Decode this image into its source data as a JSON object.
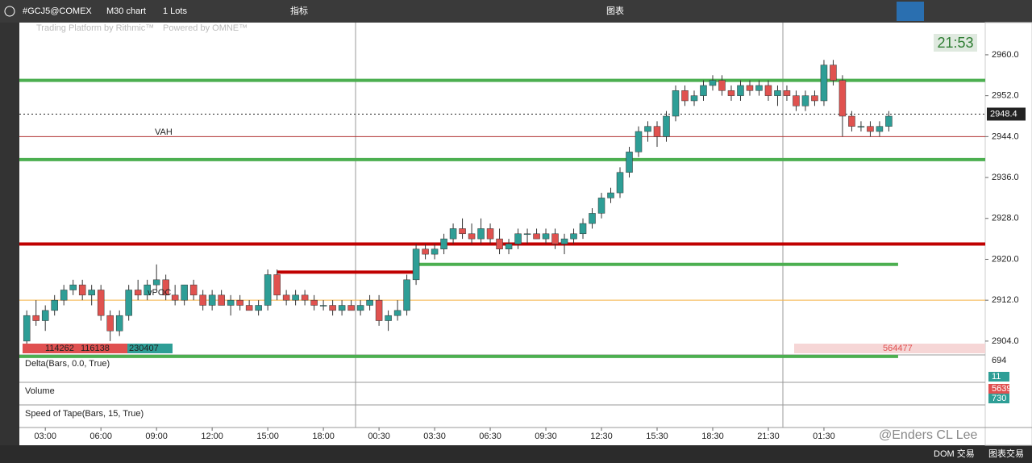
{
  "toolbar": {
    "symbol": "#GCJ5@COMEX",
    "chart_type": "M30 chart",
    "lots": "1 Lots",
    "indicators": "指标",
    "window_title": "图表"
  },
  "watermark": {
    "left": "Trading Platform by Rithmic™",
    "right": "Powered by OMNE™"
  },
  "footer": {
    "dom": "DOM 交易",
    "chart_trading": "图表交易",
    "credit": "@Enders CL Lee"
  },
  "chart_data": {
    "type": "candlestick",
    "clock": "21:53",
    "ylim": [
      2901.3,
      2966.3
    ],
    "yticks": [
      {
        "value": 2904,
        "label": "2904.0"
      },
      {
        "value": 2912,
        "label": "2912.0"
      },
      {
        "value": 2920,
        "label": "2920.0"
      },
      {
        "value": 2928,
        "label": "2928.0"
      },
      {
        "value": 2936,
        "label": "2936.0"
      },
      {
        "value": 2944,
        "label": "2944.0"
      },
      {
        "value": 2952,
        "label": "2952.0"
      },
      {
        "value": 2960,
        "label": "2960.0"
      }
    ],
    "xlim": [
      -0.8,
      103.4
    ],
    "xticks": [
      {
        "value": 2,
        "label": "03:00"
      },
      {
        "value": 8,
        "label": "06:00"
      },
      {
        "value": 14,
        "label": "09:00"
      },
      {
        "value": 20,
        "label": "12:00"
      },
      {
        "value": 26,
        "label": "15:00"
      },
      {
        "value": 32,
        "label": "18:00"
      },
      {
        "value": 38,
        "label": "00:30"
      },
      {
        "value": 44,
        "label": "03:30"
      },
      {
        "value": 50,
        "label": "06:30"
      },
      {
        "value": 56,
        "label": "09:30"
      },
      {
        "value": 62,
        "label": "12:30"
      },
      {
        "value": 68,
        "label": "15:30"
      },
      {
        "value": 74,
        "label": "18:30"
      },
      {
        "value": 80,
        "label": "21:30"
      },
      {
        "value": 86,
        "label": "01:30"
      }
    ],
    "up_color": "#2e9e96",
    "down_color": "#e0524f",
    "last_price": {
      "value": 2948.4,
      "label": "2948.4"
    },
    "ohlc": [
      [
        2904,
        2910,
        2903,
        2909
      ],
      [
        2909,
        2912,
        2907,
        2908
      ],
      [
        2908,
        2911,
        2906,
        2910
      ],
      [
        2910,
        2913,
        2909,
        2912
      ],
      [
        2912,
        2915,
        2911,
        2914
      ],
      [
        2914,
        2916,
        2913,
        2915
      ],
      [
        2915,
        2916,
        2912,
        2913
      ],
      [
        2913,
        2915,
        2911,
        2914
      ],
      [
        2914,
        2915,
        2908,
        2909
      ],
      [
        2909,
        2910,
        2904,
        2906
      ],
      [
        2906,
        2910,
        2905,
        2909
      ],
      [
        2909,
        2915,
        2908,
        2914
      ],
      [
        2914,
        2916,
        2912,
        2913
      ],
      [
        2913,
        2916,
        2912,
        2915
      ],
      [
        2915,
        2919,
        2914,
        2916
      ],
      [
        2916,
        2917,
        2912,
        2913
      ],
      [
        2913,
        2915,
        2911,
        2912
      ],
      [
        2912,
        2915,
        2911,
        2915
      ],
      [
        2915,
        2916,
        2912,
        2913
      ],
      [
        2913,
        2914,
        2910,
        2911
      ],
      [
        2911,
        2914,
        2910,
        2913
      ],
      [
        2913,
        2914,
        2911,
        2911
      ],
      [
        2911,
        2913,
        2909,
        2912
      ],
      [
        2912,
        2913,
        2910,
        2911
      ],
      [
        2911,
        2912,
        2910,
        2910
      ],
      [
        2910,
        2912,
        2909,
        2911
      ],
      [
        2911,
        2918,
        2910,
        2917
      ],
      [
        2917,
        2918,
        2912,
        2913
      ],
      [
        2913,
        2914,
        2911,
        2912
      ],
      [
        2912,
        2914,
        2911,
        2913
      ],
      [
        2913,
        2914,
        2911,
        2912
      ],
      [
        2912,
        2913,
        2910,
        2911
      ],
      [
        2911,
        2912,
        2910,
        2911
      ],
      [
        2911,
        2912,
        2909,
        2910
      ],
      [
        2910,
        2912,
        2909,
        2911
      ],
      [
        2911,
        2912,
        2910,
        2910
      ],
      [
        2910,
        2912,
        2909,
        2911
      ],
      [
        2911,
        2913,
        2910,
        2912
      ],
      [
        2912,
        2913,
        2907,
        2908
      ],
      [
        2908,
        2910,
        2906,
        2909
      ],
      [
        2909,
        2912,
        2908,
        2910
      ],
      [
        2910,
        2917,
        2909,
        2916
      ],
      [
        2916,
        2923,
        2915,
        2922
      ],
      [
        2922,
        2923,
        2920,
        2921
      ],
      [
        2921,
        2923,
        2920,
        2922
      ],
      [
        2922,
        2925,
        2921,
        2924
      ],
      [
        2924,
        2927,
        2923,
        2926
      ],
      [
        2926,
        2928,
        2924,
        2925
      ],
      [
        2925,
        2927,
        2923,
        2924
      ],
      [
        2924,
        2928,
        2923,
        2926
      ],
      [
        2926,
        2927,
        2923,
        2924
      ],
      [
        2924,
        2926,
        2921,
        2922
      ],
      [
        2922,
        2924,
        2921,
        2923
      ],
      [
        2923,
        2926,
        2922,
        2925
      ],
      [
        2925,
        2926,
        2923,
        2925
      ],
      [
        2925,
        2926,
        2924,
        2924
      ],
      [
        2924,
        2926,
        2923,
        2925
      ],
      [
        2925,
        2926,
        2922,
        2923
      ],
      [
        2923,
        2925,
        2921,
        2924
      ],
      [
        2924,
        2926,
        2923,
        2925
      ],
      [
        2925,
        2928,
        2924,
        2927
      ],
      [
        2927,
        2930,
        2926,
        2929
      ],
      [
        2929,
        2933,
        2928,
        2932
      ],
      [
        2932,
        2934,
        2931,
        2933
      ],
      [
        2933,
        2938,
        2932,
        2937
      ],
      [
        2937,
        2942,
        2936,
        2941
      ],
      [
        2941,
        2946,
        2940,
        2945
      ],
      [
        2945,
        2947,
        2943,
        2946
      ],
      [
        2946,
        2947,
        2942,
        2944
      ],
      [
        2944,
        2949,
        2943,
        2948
      ],
      [
        2948,
        2954,
        2947,
        2953
      ],
      [
        2953,
        2954,
        2950,
        2951
      ],
      [
        2951,
        2953,
        2950,
        2952
      ],
      [
        2952,
        2955,
        2951,
        2954
      ],
      [
        2954,
        2956,
        2953,
        2955
      ],
      [
        2955,
        2956,
        2952,
        2953
      ],
      [
        2953,
        2954,
        2951,
        2952
      ],
      [
        2952,
        2955,
        2951,
        2954
      ],
      [
        2954,
        2955,
        2952,
        2953
      ],
      [
        2953,
        2955,
        2952,
        2954
      ],
      [
        2954,
        2955,
        2951,
        2952
      ],
      [
        2952,
        2954,
        2950,
        2953
      ],
      [
        2953,
        2954,
        2951,
        2952
      ],
      [
        2952,
        2953,
        2949,
        2950
      ],
      [
        2950,
        2953,
        2949,
        2952
      ],
      [
        2952,
        2953,
        2950,
        2951
      ],
      [
        2951,
        2959,
        2950,
        2958
      ],
      [
        2958,
        2959,
        2954,
        2955
      ],
      [
        2955,
        2956,
        2944,
        2948
      ],
      [
        2948,
        2949,
        2945,
        2946
      ],
      [
        2946,
        2947,
        2945,
        2946
      ],
      [
        2946,
        2947,
        2944,
        2945
      ],
      [
        2945,
        2947,
        2944,
        2946
      ],
      [
        2946,
        2949,
        2945,
        2948
      ]
    ],
    "levels": [
      {
        "value": 2955,
        "color": "#4caf50",
        "weight": "thick"
      },
      {
        "value": 2939.5,
        "color": "#4caf50",
        "weight": "thick"
      },
      {
        "value": 2923,
        "color": "#c00000",
        "weight": "thick"
      },
      {
        "value": 2919,
        "color": "#4caf50",
        "weight": "thick",
        "from": 42,
        "to": 94
      },
      {
        "value": 2917.5,
        "color": "#c00000",
        "weight": "thick",
        "from": 27,
        "to": 42
      },
      {
        "value": 2912,
        "color": "#f5b041",
        "weight": "thin"
      },
      {
        "value": 2944,
        "color": "#b03030",
        "weight": "thin"
      },
      {
        "value": 2901,
        "color": "#4caf50",
        "weight": "thick",
        "to": 94
      }
    ],
    "annotations": [
      {
        "text": "VAH",
        "price": 2944.8
      },
      {
        "text": "vPOC",
        "price": 2913.4
      }
    ],
    "stats": [
      "114262",
      "116138",
      "230407",
      "564477"
    ],
    "panes": [
      {
        "title": "Delta(Bars, 0.0, True)",
        "readings": [
          "694",
          "11"
        ]
      },
      {
        "title": "Volume",
        "readings": [
          "5639",
          "730"
        ]
      },
      {
        "title": "Speed of Tape(Bars, 15, True)",
        "readings": []
      }
    ]
  }
}
